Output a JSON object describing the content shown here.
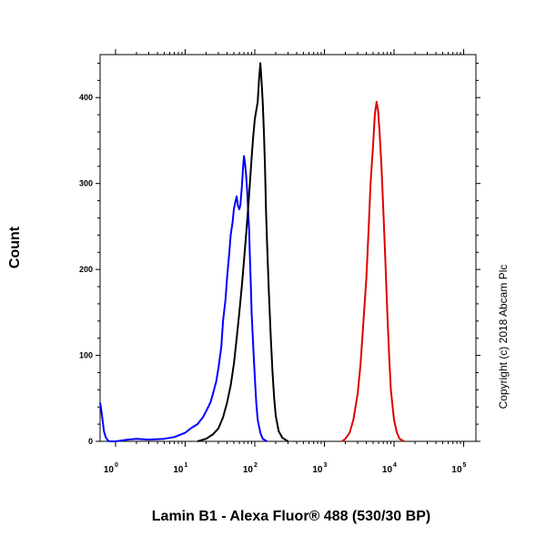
{
  "chart_data": {
    "type": "line",
    "title": "",
    "xlabel": "Lamin B1 - Alexa Fluor® 488 (530/30 BP)",
    "ylabel": "Count",
    "x_scale": "log",
    "xlim": [
      0.6,
      150000
    ],
    "ylim": [
      0,
      450
    ],
    "y_ticks": [
      "0",
      "100",
      "200",
      "300",
      "400"
    ],
    "x_tick_base": "10",
    "x_tick_exponents": [
      "0",
      "1",
      "2",
      "3",
      "4",
      "5"
    ],
    "grid": false,
    "legend": "none",
    "annotation": "Copyright (c) 2018 Abcam Plc",
    "series": [
      {
        "color": "#0000ff",
        "x": [
          0.6,
          0.62,
          0.65,
          0.68,
          0.72,
          0.76,
          0.8,
          0.9,
          1.0,
          1.5,
          2,
          3,
          5,
          7,
          10,
          12,
          15,
          18,
          20,
          23,
          25,
          28,
          30,
          33,
          35,
          38,
          40,
          43,
          45,
          48,
          50,
          53,
          55,
          57,
          60,
          62,
          65,
          68,
          70,
          72,
          75,
          78,
          80,
          83,
          85,
          88,
          90,
          95,
          100,
          105,
          110,
          120,
          130,
          150
        ],
        "y": [
          45,
          38,
          25,
          12,
          5,
          2,
          0,
          0,
          0,
          2,
          3,
          2,
          3,
          5,
          10,
          15,
          20,
          28,
          35,
          45,
          55,
          70,
          85,
          110,
          140,
          165,
          190,
          220,
          240,
          255,
          270,
          280,
          285,
          275,
          270,
          275,
          295,
          320,
          332,
          325,
          310,
          290,
          270,
          245,
          215,
          180,
          150,
          110,
          75,
          45,
          25,
          10,
          3,
          0
        ]
      },
      {
        "color": "#000000",
        "x": [
          15,
          20,
          25,
          30,
          35,
          40,
          45,
          50,
          55,
          60,
          65,
          70,
          75,
          80,
          85,
          90,
          95,
          100,
          105,
          110,
          115,
          120,
          125,
          130,
          135,
          140,
          145,
          150,
          160,
          170,
          180,
          190,
          200,
          220,
          250,
          300
        ],
        "y": [
          0,
          3,
          8,
          15,
          28,
          45,
          65,
          90,
          120,
          150,
          180,
          210,
          240,
          270,
          300,
          330,
          355,
          375,
          385,
          395,
          420,
          440,
          420,
          395,
          360,
          320,
          270,
          230,
          170,
          120,
          80,
          50,
          30,
          12,
          4,
          0
        ]
      },
      {
        "color": "#e00000",
        "x": [
          1800,
          2000,
          2300,
          2600,
          3000,
          3300,
          3600,
          4000,
          4300,
          4600,
          5000,
          5300,
          5600,
          5900,
          6200,
          6600,
          7000,
          7500,
          8000,
          8500,
          9000,
          10000,
          11000,
          12000,
          14000
        ],
        "y": [
          0,
          3,
          10,
          25,
          55,
          90,
          135,
          190,
          245,
          300,
          345,
          380,
          395,
          385,
          360,
          320,
          270,
          210,
          150,
          100,
          60,
          25,
          10,
          3,
          0
        ]
      }
    ]
  }
}
